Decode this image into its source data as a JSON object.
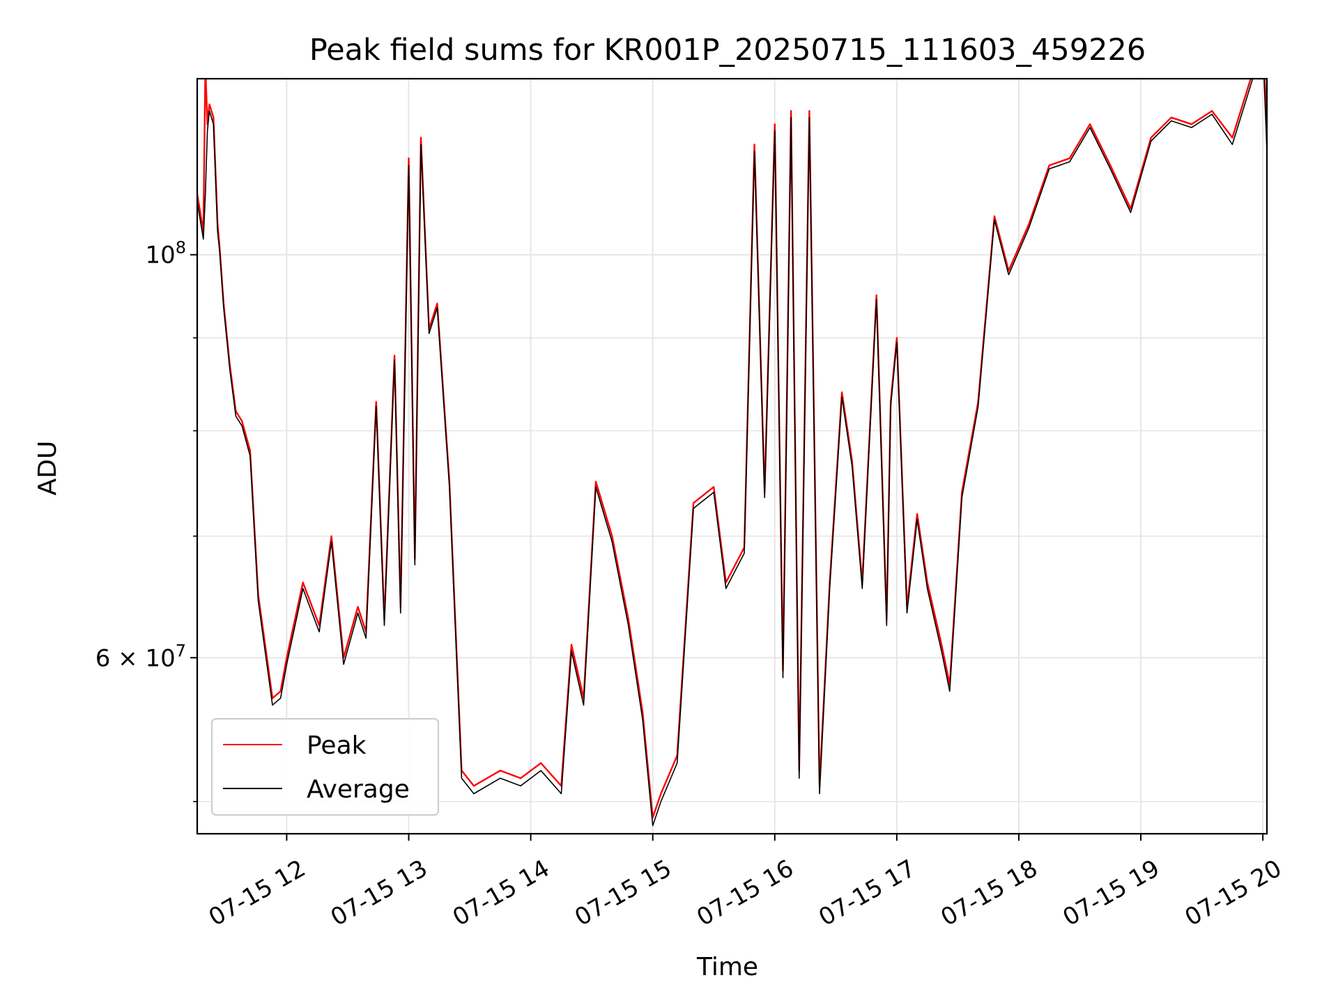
{
  "chart_data": {
    "type": "line",
    "title": "Peak field sums for KR001P_20250715_111603_459226",
    "xlabel": "Time",
    "ylabel": "ADU",
    "yscale": "log",
    "ylim": [
      48000000,
      125000000
    ],
    "xlim": [
      "07-15 11:16",
      "07-15 20:02"
    ],
    "grid": true,
    "legend_position": "lower-left",
    "x_ticks": [
      "07-15 12",
      "07-15 13",
      "07-15 14",
      "07-15 15",
      "07-15 16",
      "07-15 17",
      "07-15 18",
      "07-15 19",
      "07-15 20"
    ],
    "y_major_ticks": [
      {
        "value": 100000000,
        "label_base": "10",
        "label_exp": "8"
      },
      {
        "value": 60000000,
        "label_base": "6 × 10",
        "label_exp": "7"
      }
    ],
    "y_minor_ticks": [
      50000000,
      70000000,
      80000000,
      90000000
    ],
    "colors": {
      "peak": "#ff0000",
      "average": "#000000",
      "grid": "#e6e6e6"
    },
    "series": [
      {
        "name": "Peak",
        "color": "#ff0000",
        "x": [
          "07-15 11:16",
          "07-15 11:19",
          "07-15 11:20",
          "07-15 11:21",
          "07-15 11:22",
          "07-15 11:24",
          "07-15 11:26",
          "07-15 11:27",
          "07-15 11:29",
          "07-15 11:32",
          "07-15 11:35",
          "07-15 11:38",
          "07-15 11:42",
          "07-15 11:46",
          "07-15 11:53",
          "07-15 11:57",
          "07-15 12:00",
          "07-15 12:08",
          "07-15 12:16",
          "07-15 12:22",
          "07-15 12:28",
          "07-15 12:35",
          "07-15 12:39",
          "07-15 12:44",
          "07-15 12:48",
          "07-15 12:53",
          "07-15 12:56",
          "07-15 13:00",
          "07-15 13:03",
          "07-15 13:06",
          "07-15 13:10",
          "07-15 13:14",
          "07-15 13:20",
          "07-15 13:26",
          "07-15 13:32",
          "07-15 13:45",
          "07-15 13:55",
          "07-15 14:05",
          "07-15 14:15",
          "07-15 14:20",
          "07-15 14:26",
          "07-15 14:32",
          "07-15 14:40",
          "07-15 14:48",
          "07-15 14:55",
          "07-15 15:00",
          "07-15 15:04",
          "07-15 15:12",
          "07-15 15:20",
          "07-15 15:30",
          "07-15 15:36",
          "07-15 15:45",
          "07-15 15:50",
          "07-15 15:55",
          "07-15 16:00",
          "07-15 16:04",
          "07-15 16:08",
          "07-15 16:12",
          "07-15 16:17",
          "07-15 16:22",
          "07-15 16:27",
          "07-15 16:33",
          "07-15 16:38",
          "07-15 16:43",
          "07-15 16:50",
          "07-15 16:55",
          "07-15 16:57",
          "07-15 17:00",
          "07-15 17:05",
          "07-15 17:10",
          "07-15 17:15",
          "07-15 17:22",
          "07-15 17:26",
          "07-15 17:32",
          "07-15 17:40",
          "07-15 17:48",
          "07-15 17:55",
          "07-15 18:05",
          "07-15 18:15",
          "07-15 18:25",
          "07-15 18:35",
          "07-15 18:45",
          "07-15 18:55",
          "07-15 19:05",
          "07-15 19:15",
          "07-15 19:25",
          "07-15 19:35",
          "07-15 19:45",
          "07-15 19:55",
          "07-15 20:00",
          "07-15 20:02"
        ],
        "values": [
          108000000,
          103000000,
          127000000,
          118000000,
          121000000,
          119000000,
          104000000,
          101000000,
          94000000,
          87000000,
          82000000,
          81000000,
          78000000,
          65000000,
          57000000,
          57500000,
          60000000,
          66000000,
          62500000,
          70000000,
          60000000,
          64000000,
          62000000,
          83000000,
          63000000,
          88000000,
          64000000,
          113000000,
          68000000,
          116000000,
          91000000,
          94000000,
          75000000,
          52000000,
          51000000,
          52000000,
          51500000,
          52500000,
          51000000,
          61000000,
          57000000,
          75000000,
          70000000,
          63000000,
          56000000,
          49000000,
          50500000,
          53000000,
          73000000,
          74500000,
          66000000,
          69000000,
          115000000,
          74000000,
          118000000,
          59000000,
          120000000,
          52000000,
          120000000,
          51000000,
          66000000,
          84000000,
          77000000,
          66000000,
          95000000,
          63000000,
          83000000,
          90000000,
          64000000,
          72000000,
          66000000,
          61000000,
          58000000,
          74000000,
          83000000,
          105000000,
          98000000,
          104000000,
          112000000,
          113000000,
          118000000,
          112000000,
          106000000,
          116000000,
          119000000,
          118000000,
          120000000,
          116000000,
          126000000,
          131000000,
          118000000
        ]
      },
      {
        "name": "Average",
        "color": "#000000",
        "x": [
          "07-15 11:16",
          "07-15 11:19",
          "07-15 11:20",
          "07-15 11:21",
          "07-15 11:22",
          "07-15 11:24",
          "07-15 11:26",
          "07-15 11:27",
          "07-15 11:29",
          "07-15 11:32",
          "07-15 11:35",
          "07-15 11:38",
          "07-15 11:42",
          "07-15 11:46",
          "07-15 11:53",
          "07-15 11:57",
          "07-15 12:00",
          "07-15 12:08",
          "07-15 12:16",
          "07-15 12:22",
          "07-15 12:28",
          "07-15 12:35",
          "07-15 12:39",
          "07-15 12:44",
          "07-15 12:48",
          "07-15 12:53",
          "07-15 12:56",
          "07-15 13:00",
          "07-15 13:03",
          "07-15 13:06",
          "07-15 13:10",
          "07-15 13:14",
          "07-15 13:20",
          "07-15 13:26",
          "07-15 13:32",
          "07-15 13:45",
          "07-15 13:55",
          "07-15 14:05",
          "07-15 14:15",
          "07-15 14:20",
          "07-15 14:26",
          "07-15 14:32",
          "07-15 14:40",
          "07-15 14:48",
          "07-15 14:55",
          "07-15 15:00",
          "07-15 15:04",
          "07-15 15:12",
          "07-15 15:20",
          "07-15 15:30",
          "07-15 15:36",
          "07-15 15:45",
          "07-15 15:50",
          "07-15 15:55",
          "07-15 16:00",
          "07-15 16:04",
          "07-15 16:08",
          "07-15 16:12",
          "07-15 16:17",
          "07-15 16:22",
          "07-15 16:27",
          "07-15 16:33",
          "07-15 16:38",
          "07-15 16:43",
          "07-15 16:50",
          "07-15 16:55",
          "07-15 16:57",
          "07-15 17:00",
          "07-15 17:05",
          "07-15 17:10",
          "07-15 17:15",
          "07-15 17:22",
          "07-15 17:26",
          "07-15 17:32",
          "07-15 17:40",
          "07-15 17:48",
          "07-15 17:55",
          "07-15 18:05",
          "07-15 18:15",
          "07-15 18:25",
          "07-15 18:35",
          "07-15 18:45",
          "07-15 18:55",
          "07-15 19:05",
          "07-15 19:15",
          "07-15 19:25",
          "07-15 19:35",
          "07-15 19:45",
          "07-15 19:55",
          "07-15 20:00",
          "07-15 20:02"
        ],
        "values": [
          107000000,
          102000000,
          108000000,
          117000000,
          120000000,
          118000000,
          103000000,
          100500000,
          93500000,
          86500000,
          81500000,
          80500000,
          77500000,
          64500000,
          56500000,
          57000000,
          59500000,
          65500000,
          62000000,
          69500000,
          59500000,
          63500000,
          61500000,
          82500000,
          62500000,
          87500000,
          63500000,
          112000000,
          67500000,
          115000000,
          90500000,
          93500000,
          74500000,
          51500000,
          50500000,
          51500000,
          51000000,
          52000000,
          50500000,
          60500000,
          56500000,
          74500000,
          69500000,
          62500000,
          55500000,
          48500000,
          50000000,
          52500000,
          72500000,
          74000000,
          65500000,
          68500000,
          114000000,
          73500000,
          117000000,
          58500000,
          119000000,
          51500000,
          119000000,
          50500000,
          65500000,
          83500000,
          76500000,
          65500000,
          94500000,
          62500000,
          82500000,
          89500000,
          63500000,
          71500000,
          65500000,
          60500000,
          57500000,
          73500000,
          82500000,
          104500000,
          97500000,
          103500000,
          111500000,
          112500000,
          117500000,
          111500000,
          105500000,
          115500000,
          118500000,
          117500000,
          119500000,
          115000000,
          125000000,
          130000000,
          114000000
        ]
      }
    ]
  }
}
